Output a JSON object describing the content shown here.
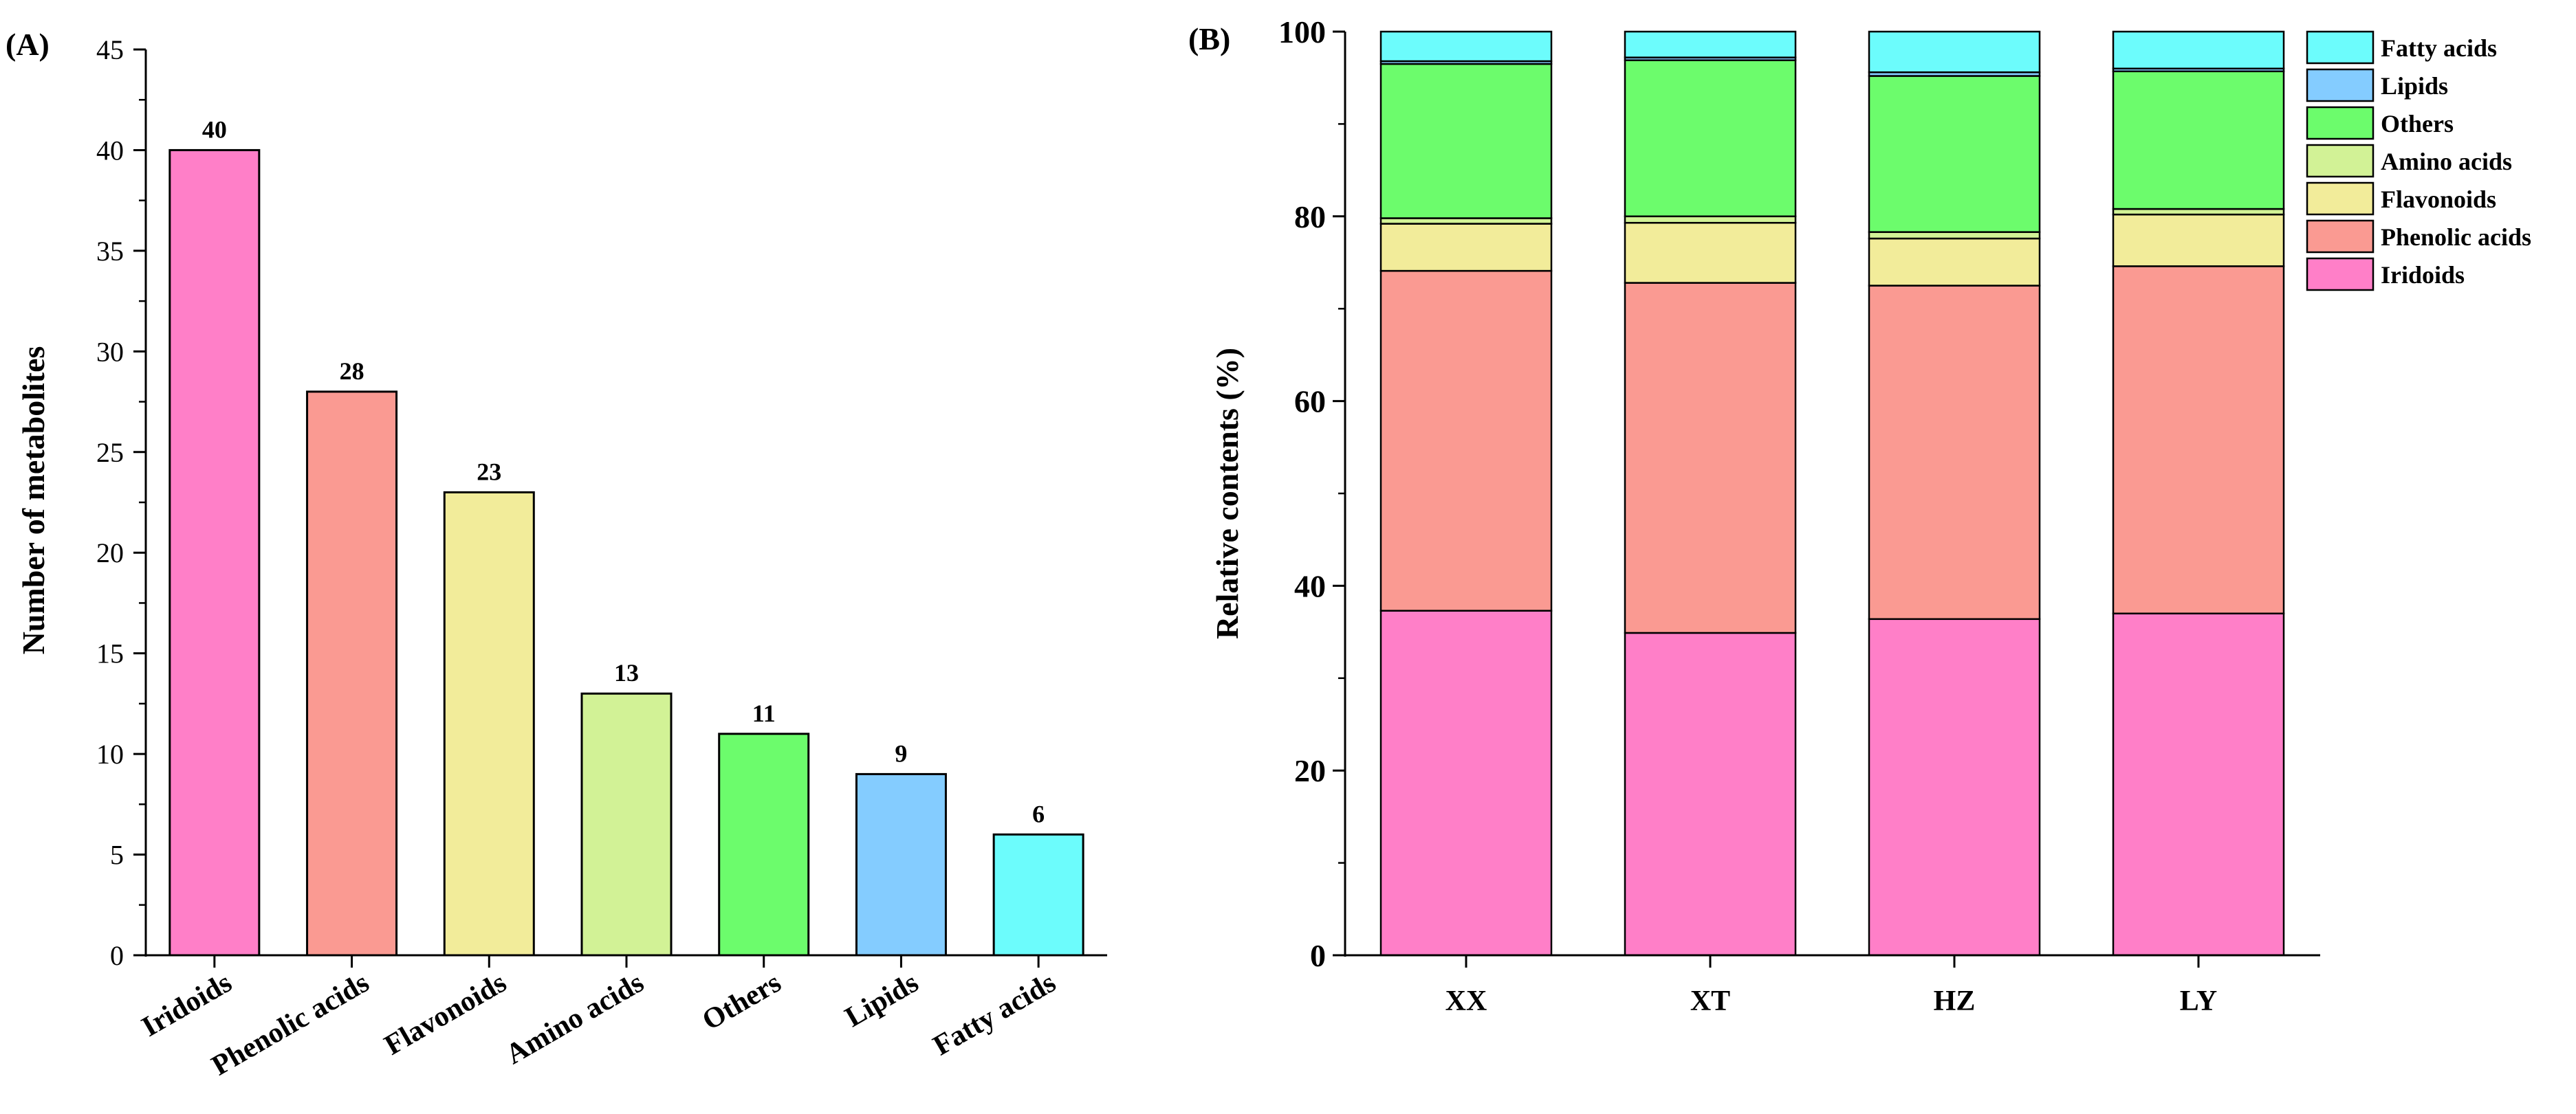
{
  "chart_data": [
    {
      "panel": "(A)",
      "type": "bar",
      "title": "",
      "xlabel": "",
      "ylabel": "Number of metabolites",
      "ylim": [
        0,
        45
      ],
      "yticks": [
        "0",
        "5",
        "10",
        "15",
        "20",
        "25",
        "30",
        "35",
        "40",
        "45"
      ],
      "categories": [
        "Iridoids",
        "Phenolic acids",
        "Flavonoids",
        "Amino acids",
        "Others",
        "Lipids",
        "Fatty acids"
      ],
      "values": [
        40,
        28,
        23,
        13,
        11,
        9,
        6
      ],
      "data_labels": [
        "40",
        "28",
        "23",
        "13",
        "11",
        "9",
        "6"
      ],
      "colors": [
        "#ff7fc8",
        "#fa9a92",
        "#f2ec9a",
        "#d2f296",
        "#6cfc6c",
        "#84ccff",
        "#6cfcfc"
      ]
    },
    {
      "panel": "(B)",
      "type": "stacked-bar",
      "title": "",
      "xlabel": "",
      "ylabel": "Relative contents (%)",
      "ylim": [
        0,
        100
      ],
      "yticks": [
        "0",
        "20",
        "40",
        "60",
        "80",
        "100"
      ],
      "categories": [
        "XX",
        "XT",
        "HZ",
        "LY"
      ],
      "legend_position": "top-right",
      "series": [
        {
          "name": "Iridoids",
          "color": "#ff7fc8",
          "values": [
            37.3,
            34.9,
            36.4,
            37.0
          ]
        },
        {
          "name": "Phenolic acids",
          "color": "#fa9a92",
          "values": [
            36.8,
            37.9,
            36.1,
            37.6
          ]
        },
        {
          "name": "Flavonoids",
          "color": "#f2ec9a",
          "values": [
            5.1,
            6.5,
            5.1,
            5.6
          ]
        },
        {
          "name": "Amino acids",
          "color": "#d2f296",
          "values": [
            0.6,
            0.7,
            0.7,
            0.6
          ]
        },
        {
          "name": "Others",
          "color": "#6cfc6c",
          "values": [
            16.7,
            16.9,
            16.9,
            14.9
          ]
        },
        {
          "name": "Lipids",
          "color": "#84ccff",
          "values": [
            0.3,
            0.3,
            0.4,
            0.3
          ]
        },
        {
          "name": "Fatty acids",
          "color": "#6cfcfc",
          "values": [
            3.2,
            2.8,
            4.4,
            4.0
          ]
        }
      ]
    }
  ]
}
